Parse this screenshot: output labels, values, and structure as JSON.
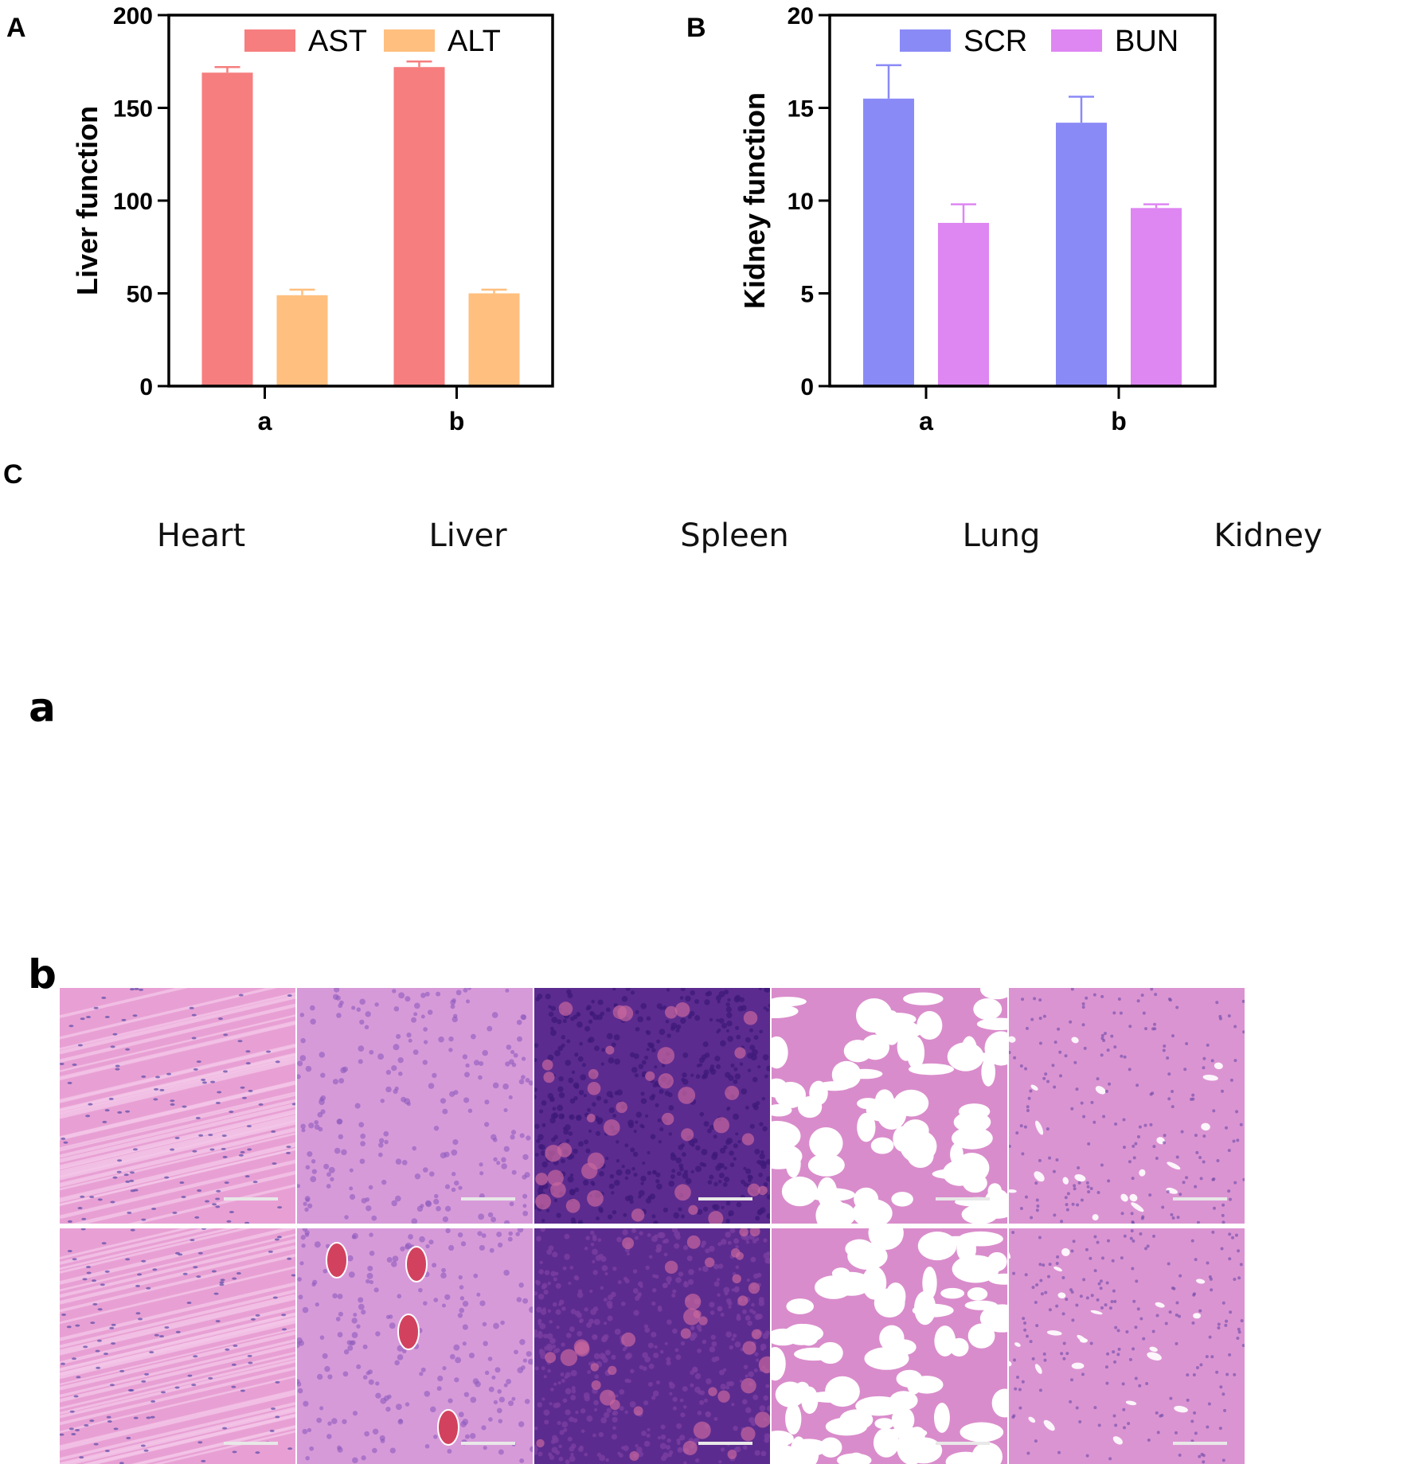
{
  "panels": {
    "a": "A",
    "b": "B",
    "c": "C"
  },
  "chart_data": [
    {
      "type": "bar",
      "title": "",
      "xlabel": "",
      "ylabel": "Liver function",
      "ylim": [
        0,
        200
      ],
      "yticks": [
        0,
        50,
        100,
        150,
        200
      ],
      "categories": [
        "a",
        "b"
      ],
      "legend_position": "top",
      "series": [
        {
          "name": "AST",
          "color": "#F67E7E",
          "values": [
            169,
            172
          ],
          "errors": [
            3,
            3
          ]
        },
        {
          "name": "ALT",
          "color": "#FFBF7F",
          "values": [
            49,
            50
          ],
          "errors": [
            3,
            2
          ]
        }
      ]
    },
    {
      "type": "bar",
      "title": "",
      "xlabel": "",
      "ylabel": "Kidney function",
      "ylim": [
        0,
        20
      ],
      "yticks": [
        0,
        5,
        10,
        15,
        20
      ],
      "categories": [
        "a",
        "b"
      ],
      "legend_position": "top",
      "series": [
        {
          "name": "SCR",
          "color": "#8A8AF7",
          "values": [
            15.5,
            14.2
          ],
          "errors": [
            1.8,
            1.4
          ]
        },
        {
          "name": "BUN",
          "color": "#DE86F2",
          "values": [
            8.8,
            9.6
          ],
          "errors": [
            1.0,
            0.2
          ]
        }
      ]
    }
  ],
  "histology": {
    "columns": [
      "Heart",
      "Liver",
      "Spleen",
      "Lung",
      "Kidney"
    ],
    "rows": [
      "a",
      "b"
    ],
    "tissue_colors": {
      "heart": "#E8A0D4",
      "liver": "#D79AD9",
      "spleen": "#5C2B8F",
      "lung": "#FFFFFF",
      "kidney": "#DB94D2"
    }
  }
}
